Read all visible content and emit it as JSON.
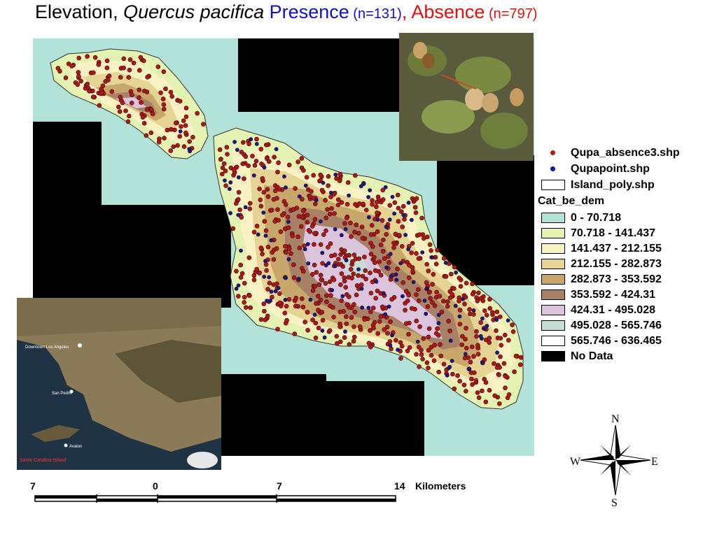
{
  "title": {
    "prefix": "Elevation, ",
    "species": "Quercus pacifica",
    "presence_label": " Presence",
    "presence_n": " (n=131)",
    "comma": ",",
    "absence_label": " Absence",
    "absence_n": " (n=797)"
  },
  "colors": {
    "background": "#ffffff",
    "presence_text": "#1010cc",
    "absence_text": "#e01010",
    "no_data": "#000000",
    "sea": "#b3e3d8",
    "absence_point": "#b01818",
    "presence_point": "#0a1a9a"
  },
  "legend": {
    "absence_layer": "Qupa_absence3.shp",
    "presence_layer": "Qupapoint.shp",
    "island_layer": "Island_poly.shp",
    "raster_layer": "Cat_be_dem",
    "classes": [
      {
        "label": "0 - 70.718",
        "color": "#b3e3d8"
      },
      {
        "label": "70.718 - 141.437",
        "color": "#e4f3b2"
      },
      {
        "label": "141.437 - 212.155",
        "color": "#f8f1c4"
      },
      {
        "label": "212.155 - 282.873",
        "color": "#e5d494"
      },
      {
        "label": "282.873 - 353.592",
        "color": "#c8a76c"
      },
      {
        "label": "353.592 - 424.31",
        "color": "#a98167"
      },
      {
        "label": "424.31 - 495.028",
        "color": "#dcc4dc"
      },
      {
        "label": "495.028 - 565.746",
        "color": "#c6dcd4"
      },
      {
        "label": "565.746 - 636.465",
        "color": "#ffffff"
      },
      {
        "label": "No Data",
        "color": "#000000"
      }
    ]
  },
  "scalebar": {
    "tick_labels": [
      "7",
      "0",
      "7",
      "14"
    ],
    "units": "Kilometers"
  },
  "compass": {
    "north": "N",
    "south": "S",
    "east": "E",
    "west": "W"
  },
  "photo": {
    "subject": "quercus-pacifica-acorn-photo"
  },
  "inset": {
    "labels": [
      "Downtown Los Angeles",
      "San Pedro",
      "Avalon"
    ],
    "caption": "Santa Catalina Island"
  }
}
